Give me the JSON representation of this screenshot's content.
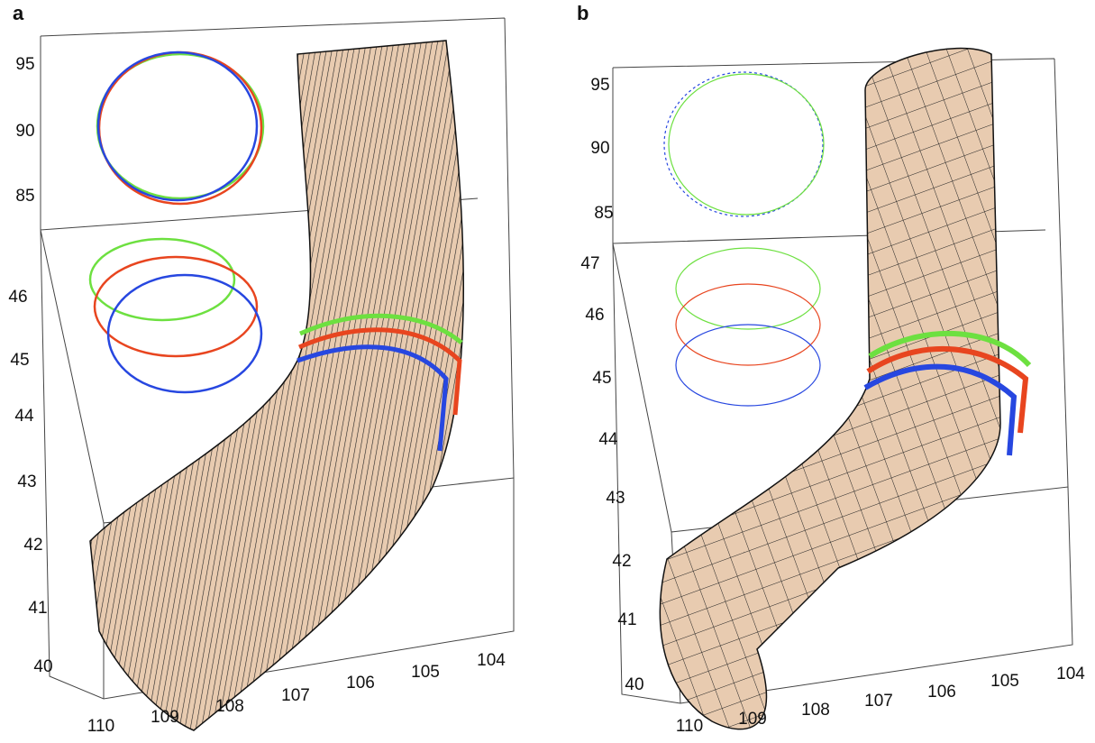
{
  "panels": [
    {
      "label": "a",
      "upper_ticks": [
        "95",
        "90",
        "85"
      ],
      "lower_ticks": [
        "46",
        "45",
        "44",
        "43",
        "42",
        "41",
        "40"
      ],
      "bottom_ticks": [
        "110",
        "109",
        "108",
        "107",
        "106",
        "105",
        "104"
      ]
    },
    {
      "label": "b",
      "upper_ticks": [
        "95",
        "90",
        "85"
      ],
      "lower_ticks": [
        "47",
        "46",
        "45",
        "44",
        "43",
        "42",
        "41",
        "40"
      ],
      "bottom_ticks": [
        "110",
        "109",
        "108",
        "107",
        "106",
        "105",
        "104"
      ]
    }
  ]
}
